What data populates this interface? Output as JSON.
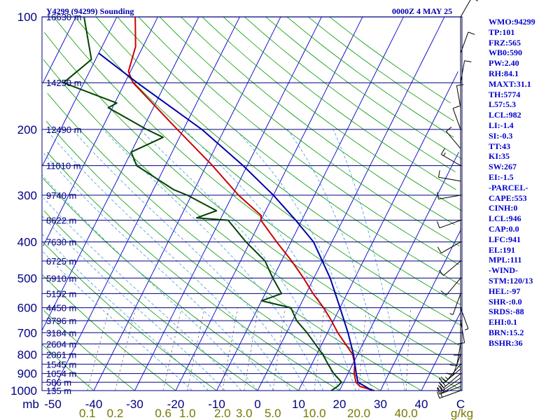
{
  "header": {
    "title": "Y4299 (94299) Sounding",
    "datetime": "0000Z  4 MAY 25"
  },
  "indices": [
    "WMO:94299",
    "TP:101",
    "FRZ:565",
    "WB0:590",
    "PW:2.40",
    "RH:84.1",
    "MAXT:31.1",
    "TH:5774",
    "L57:5.3",
    "LCL:982",
    "LI:-1.4",
    "SI:-0.3",
    "TT:43",
    "KI:35",
    "SW:267",
    "EI:-1.5",
    "-PARCEL-",
    "CAPE:553",
    "CINH:0",
    "LCL:946",
    "CAP:0.0",
    "LFC:941",
    "EL:191",
    "MPL:111",
    "-WIND-",
    "STM:120/13",
    "HEL:-97",
    "SHR-:0.0",
    "SRDS:-88",
    "EHI:0.1",
    "BRN:15.2",
    "BSHR:36"
  ],
  "chart_data": {
    "type": "line",
    "title": "Y4299 (94299) Sounding",
    "subtitle": "0000Z  4 MAY 25",
    "xlabel": "C",
    "ylabel": "mb",
    "xlim": [
      -50,
      50
    ],
    "ylim": [
      1000,
      100
    ],
    "y_scale": "log",
    "pressure_ticks": [
      1000,
      900,
      800,
      700,
      600,
      500,
      400,
      300,
      200,
      100
    ],
    "pressure_tick_labels": [
      "1000",
      "900",
      "800",
      "700",
      "600",
      "500",
      "400",
      "300",
      "200",
      "100"
    ],
    "height_labels": [
      {
        "p": 1000,
        "label": "135 m"
      },
      {
        "p": 950,
        "label": "586 m"
      },
      {
        "p": 900,
        "label": "1054 m"
      },
      {
        "p": 850,
        "label": "1545 m"
      },
      {
        "p": 800,
        "label": "2061 m"
      },
      {
        "p": 750,
        "label": "2604 m"
      },
      {
        "p": 700,
        "label": "3184 m"
      },
      {
        "p": 650,
        "label": "3796 m"
      },
      {
        "p": 600,
        "label": "4450 m"
      },
      {
        "p": 550,
        "label": "5152 m"
      },
      {
        "p": 500,
        "label": "5910 m"
      },
      {
        "p": 450,
        "label": "6725 m"
      },
      {
        "p": 400,
        "label": "7630 m"
      },
      {
        "p": 350,
        "label": "8622 m"
      },
      {
        "p": 300,
        "label": "9740 m"
      },
      {
        "p": 250,
        "label": "11010 m"
      },
      {
        "p": 200,
        "label": "12490 m"
      },
      {
        "p": 150,
        "label": "14250 m"
      },
      {
        "p": 100,
        "label": "16630 m"
      }
    ],
    "temperature_ticks": [
      -50,
      -40,
      -30,
      -20,
      -10,
      0,
      10,
      20,
      30,
      40
    ],
    "temperature_tick_labels": [
      "-50",
      "-40",
      "-30",
      "-20",
      "-10",
      "0",
      "10",
      "20",
      "30",
      "40"
    ],
    "mixing_ratio_ticks": [
      {
        "label": "0.1",
        "w": 0.1
      },
      {
        "label": "0.2",
        "w": 0.2
      },
      {
        "label": "0.6",
        "w": 0.6
      },
      {
        "label": "1.0",
        "w": 1.0
      },
      {
        "label": "2.0",
        "w": 2.0
      },
      {
        "label": "3.0",
        "w": 3.0
      },
      {
        "label": "5.0",
        "w": 5.0
      },
      {
        "label": "10.0",
        "w": 10.0
      },
      {
        "label": "20.0",
        "w": 20.0
      },
      {
        "label": "40.0",
        "w": 40.0
      }
    ],
    "mixing_ratio_unit": "g/kg",
    "series": [
      {
        "id": "temperature",
        "color": "#cc0000",
        "points": [
          [
            1000,
            28.5
          ],
          [
            975,
            24.5
          ],
          [
            950,
            23.0
          ],
          [
            900,
            21.5
          ],
          [
            850,
            20.5
          ],
          [
            800,
            18.8
          ],
          [
            700,
            12.5
          ],
          [
            650,
            9.5
          ],
          [
            600,
            6.0
          ],
          [
            550,
            1.7
          ],
          [
            500,
            -2.5
          ],
          [
            450,
            -7.5
          ],
          [
            400,
            -13.5
          ],
          [
            350,
            -20.0
          ],
          [
            340,
            -20.5
          ],
          [
            300,
            -28.5
          ],
          [
            250,
            -38.5
          ],
          [
            200,
            -51.5
          ],
          [
            150,
            -68.0
          ],
          [
            140,
            -70.5
          ],
          [
            120,
            -71.8
          ],
          [
            100,
            -75.5
          ]
        ]
      },
      {
        "id": "dewpoint",
        "color": "#004400",
        "points": [
          [
            1000,
            18.0
          ],
          [
            975,
            19.0
          ],
          [
            950,
            19.5
          ],
          [
            900,
            16.5
          ],
          [
            850,
            14.0
          ],
          [
            800,
            11.5
          ],
          [
            700,
            5.0
          ],
          [
            650,
            1.0
          ],
          [
            600,
            -2.0
          ],
          [
            575,
            -10.0
          ],
          [
            550,
            -6.0
          ],
          [
            500,
            -10.0
          ],
          [
            450,
            -14.0
          ],
          [
            400,
            -21.0
          ],
          [
            350,
            -28.0
          ],
          [
            345,
            -36.0
          ],
          [
            330,
            -32.0
          ],
          [
            300,
            -41.0
          ],
          [
            290,
            -45.0
          ],
          [
            250,
            -57.0
          ],
          [
            230,
            -60.0
          ],
          [
            210,
            -54.0
          ],
          [
            200,
            -59.0
          ],
          [
            175,
            -71.0
          ],
          [
            170,
            -69.5
          ],
          [
            150,
            -85.0
          ],
          [
            130,
            -81.0
          ],
          [
            100,
            -88.0
          ]
        ]
      },
      {
        "id": "parcel",
        "color": "#0000aa",
        "points": [
          [
            1000,
            28.0
          ],
          [
            950,
            23.5
          ],
          [
            900,
            22.0
          ],
          [
            800,
            19.0
          ],
          [
            700,
            15.0
          ],
          [
            600,
            10.0
          ],
          [
            500,
            4.0
          ],
          [
            400,
            -4.5
          ],
          [
            350,
            -11.5
          ],
          [
            300,
            -20.0
          ],
          [
            250,
            -31.0
          ],
          [
            200,
            -45.5
          ],
          [
            150,
            -67.0
          ],
          [
            125,
            -80.0
          ]
        ]
      }
    ],
    "wind_profile": [
      [
        1000,
        250,
        15
      ],
      [
        975,
        250,
        15
      ],
      [
        950,
        240,
        20
      ],
      [
        925,
        235,
        20
      ],
      [
        900,
        230,
        20
      ],
      [
        875,
        230,
        15
      ],
      [
        850,
        220,
        15
      ],
      [
        800,
        200,
        10
      ],
      [
        750,
        190,
        10
      ],
      [
        700,
        180,
        10
      ],
      [
        650,
        170,
        10
      ],
      [
        600,
        160,
        5
      ],
      [
        550,
        200,
        5
      ],
      [
        500,
        220,
        10
      ],
      [
        450,
        230,
        10
      ],
      [
        400,
        240,
        10
      ],
      [
        350,
        250,
        10
      ],
      [
        300,
        260,
        10
      ],
      [
        275,
        280,
        10
      ],
      [
        250,
        300,
        15
      ],
      [
        225,
        320,
        10
      ],
      [
        200,
        340,
        10
      ],
      [
        175,
        350,
        10
      ],
      [
        150,
        10,
        10
      ],
      [
        125,
        20,
        10
      ],
      [
        100,
        30,
        10
      ]
    ],
    "colors": {
      "isobar": "#000080",
      "isotherm": "#0000cc",
      "dry_adiabat": "#009900",
      "moist_adiabat": "#4499dd",
      "mixing_ratio": "#777777",
      "tick_labels": "#000080",
      "mixing_labels": "#777700",
      "wind_barb": "#000000"
    },
    "grid": true
  }
}
